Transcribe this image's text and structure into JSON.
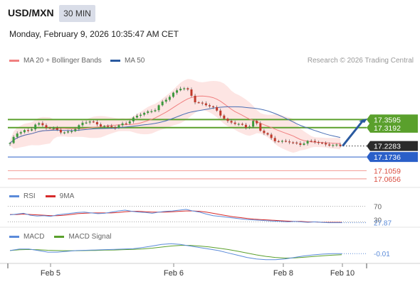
{
  "header": {
    "symbol": "USD/MXN",
    "timeframe": "30 MIN",
    "datetime": "Monday, February 9, 2026 10:35:47 AM CET"
  },
  "legend": {
    "items": [
      {
        "label": "MA 20 + Bollinger Bands",
        "color": "#f08080"
      },
      {
        "label": "MA 50",
        "color": "#2a5aa0"
      }
    ],
    "attribution": "Research © 2026 Trading Central"
  },
  "colors": {
    "up_candle": "#3c9a3c",
    "down_candle": "#c0392b",
    "resistance_line": "#5aa02c",
    "support_line": "#2a5fc8",
    "secondary_line": "#f4a5a0",
    "rsi": "#5b8bd9",
    "rsi_ma": "#d62b2b",
    "macd": "#5b8bd9",
    "macd_signal": "#5aa02c",
    "arrow": "#2a5aa0"
  },
  "rsi_panel": {
    "legend": [
      {
        "label": "RSI",
        "color": "#5b8bd9"
      },
      {
        "label": "9MA",
        "color": "#d62b2b"
      }
    ],
    "level_labels": [
      "70",
      "30"
    ],
    "current_value": "27.87"
  },
  "macd_panel": {
    "legend": [
      {
        "label": "MACD",
        "color": "#5b8bd9"
      },
      {
        "label": "MACD Signal",
        "color": "#5aa02c"
      }
    ],
    "current_value": "-0.01"
  },
  "chart_data": {
    "type": "candlestick",
    "x_tick_labels": [
      "Feb 5",
      "Feb 6",
      "Feb 8",
      "Feb 10"
    ],
    "ylim": [
      17.03,
      17.6
    ],
    "price_path": [
      17.24,
      17.29,
      17.31,
      17.3,
      17.34,
      17.33,
      17.32,
      17.31,
      17.29,
      17.3,
      17.32,
      17.34,
      17.35,
      17.34,
      17.33,
      17.32,
      17.32,
      17.34,
      17.35,
      17.37,
      17.39,
      17.4,
      17.41,
      17.44,
      17.47,
      17.5,
      17.52,
      17.5,
      17.45,
      17.44,
      17.43,
      17.41,
      17.38,
      17.35,
      17.34,
      17.33,
      17.32,
      17.36,
      17.3,
      17.28,
      17.26,
      17.25,
      17.25,
      17.24,
      17.24,
      17.25,
      17.25,
      17.24,
      17.24,
      17.23,
      17.23
    ],
    "last_price": 17.2283,
    "levels": [
      {
        "value": 17.3595,
        "label": "17.3595",
        "kind": "resistance"
      },
      {
        "value": 17.3192,
        "label": "17.3192",
        "kind": "resistance"
      },
      {
        "value": 17.2283,
        "label": "17.2283",
        "kind": "last"
      },
      {
        "value": 17.1736,
        "label": "17.1736",
        "kind": "support"
      },
      {
        "value": 17.1059,
        "label": "17.1059",
        "kind": "secondary"
      },
      {
        "value": 17.0656,
        "label": "17.0656",
        "kind": "secondary"
      }
    ],
    "rsi": [
      48,
      50,
      52,
      47,
      45,
      46,
      44,
      48,
      50,
      52,
      54,
      55,
      53,
      51,
      52,
      55,
      58,
      60,
      57,
      55,
      54,
      52,
      55,
      57,
      58,
      60,
      62,
      58,
      55,
      50,
      46,
      44,
      42,
      40,
      38,
      36,
      35,
      34,
      33,
      32,
      31,
      30,
      31,
      30,
      29,
      30,
      29,
      28,
      28,
      28
    ],
    "rsi_ma": [
      49,
      49,
      50,
      49,
      48,
      47,
      46,
      46,
      47,
      49,
      51,
      52,
      53,
      53,
      53,
      53,
      54,
      56,
      57,
      57,
      56,
      55,
      55,
      55,
      56,
      57,
      58,
      58,
      57,
      55,
      52,
      49,
      46,
      43,
      41,
      39,
      37,
      36,
      35,
      34,
      33,
      32,
      31,
      31,
      30,
      30,
      29,
      29,
      29,
      29
    ],
    "macd": [
      0.01,
      0.02,
      0.02,
      0.01,
      0.0,
      0.0,
      0.005,
      0.01,
      0.012,
      0.014,
      0.016,
      0.018,
      0.02,
      0.022,
      0.03,
      0.04,
      0.05,
      0.055,
      0.05,
      0.04,
      0.03,
      0.02,
      0.01,
      -0.005,
      -0.02,
      -0.035,
      -0.045,
      -0.05,
      -0.05,
      -0.045,
      -0.035,
      -0.025,
      -0.018,
      -0.013,
      -0.01,
      -0.01
    ],
    "macd_signal": [
      0.01,
      0.015,
      0.017,
      0.015,
      0.012,
      0.01,
      0.009,
      0.009,
      0.01,
      0.011,
      0.013,
      0.014,
      0.016,
      0.018,
      0.021,
      0.026,
      0.033,
      0.04,
      0.044,
      0.044,
      0.04,
      0.034,
      0.026,
      0.017,
      0.006,
      -0.006,
      -0.018,
      -0.028,
      -0.035,
      -0.039,
      -0.038,
      -0.034,
      -0.029,
      -0.024,
      -0.02,
      -0.017
    ]
  }
}
